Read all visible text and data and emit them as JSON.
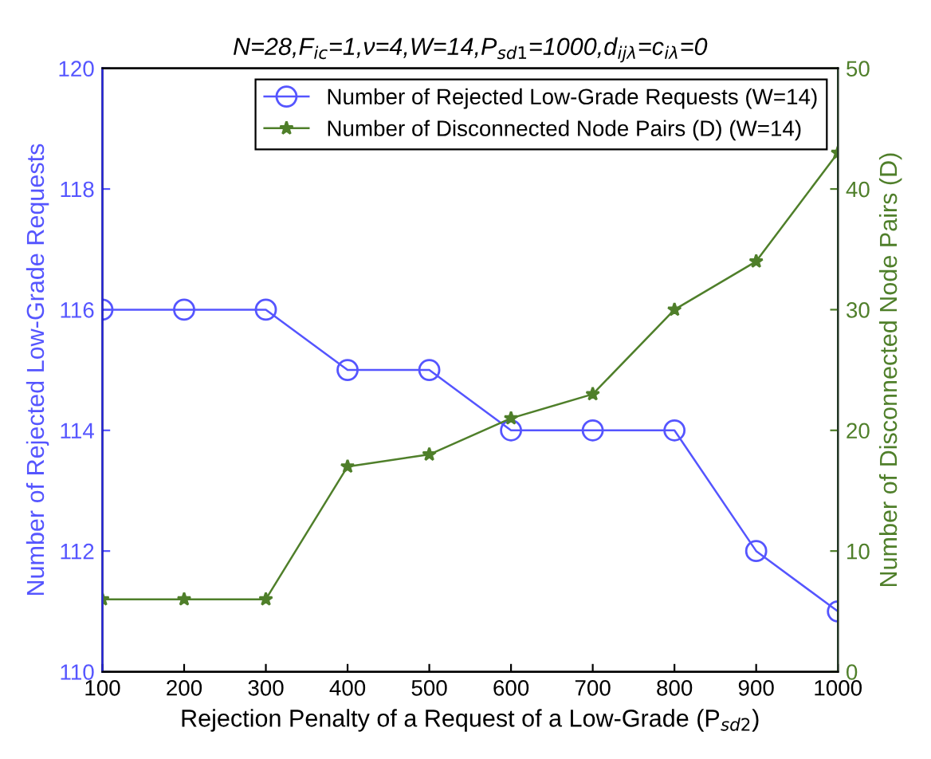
{
  "chart_data": {
    "type": "line",
    "title": "N=28,F$_{ic}$=1,ν=4,W=14,P$_{sd1}$=1000,d$_{ijλ}$=c$_{iλ}$=0",
    "xlabel": "Rejection Penalty of a Request of a Low-Grade (P$_{sd2}$)",
    "ylabel": "Number of Rejected Low-Grade Requests",
    "y2label": "Number of Disconnected Node Pairs (D)",
    "x": [
      100,
      200,
      300,
      400,
      500,
      600,
      700,
      800,
      900,
      1000
    ],
    "series": [
      {
        "name": "Number of Rejected Low-Grade Requests (W=14)",
        "color": "#5555ff",
        "marker": "circle",
        "values": [
          116,
          116,
          116,
          115,
          115,
          114,
          114,
          114,
          112,
          111
        ]
      },
      {
        "name": "Number of Disconnected Node Pairs (D) (W=14)",
        "color": "#4f7f2a",
        "marker": "star",
        "axis": "y2",
        "values": [
          6,
          6,
          6,
          17,
          18,
          21,
          23,
          30,
          34,
          43
        ]
      }
    ],
    "xlim": [
      100,
      1000
    ],
    "xticks": [
      100,
      200,
      300,
      400,
      500,
      600,
      700,
      800,
      900,
      1000
    ],
    "ylim": [
      110,
      120
    ],
    "yticks": [
      110,
      112,
      114,
      116,
      118,
      120
    ],
    "y2lim": [
      0,
      50
    ],
    "y2ticks": [
      0,
      10,
      20,
      30,
      40,
      50
    ],
    "grid": false,
    "legend": "top right",
    "line_style": "solid"
  }
}
